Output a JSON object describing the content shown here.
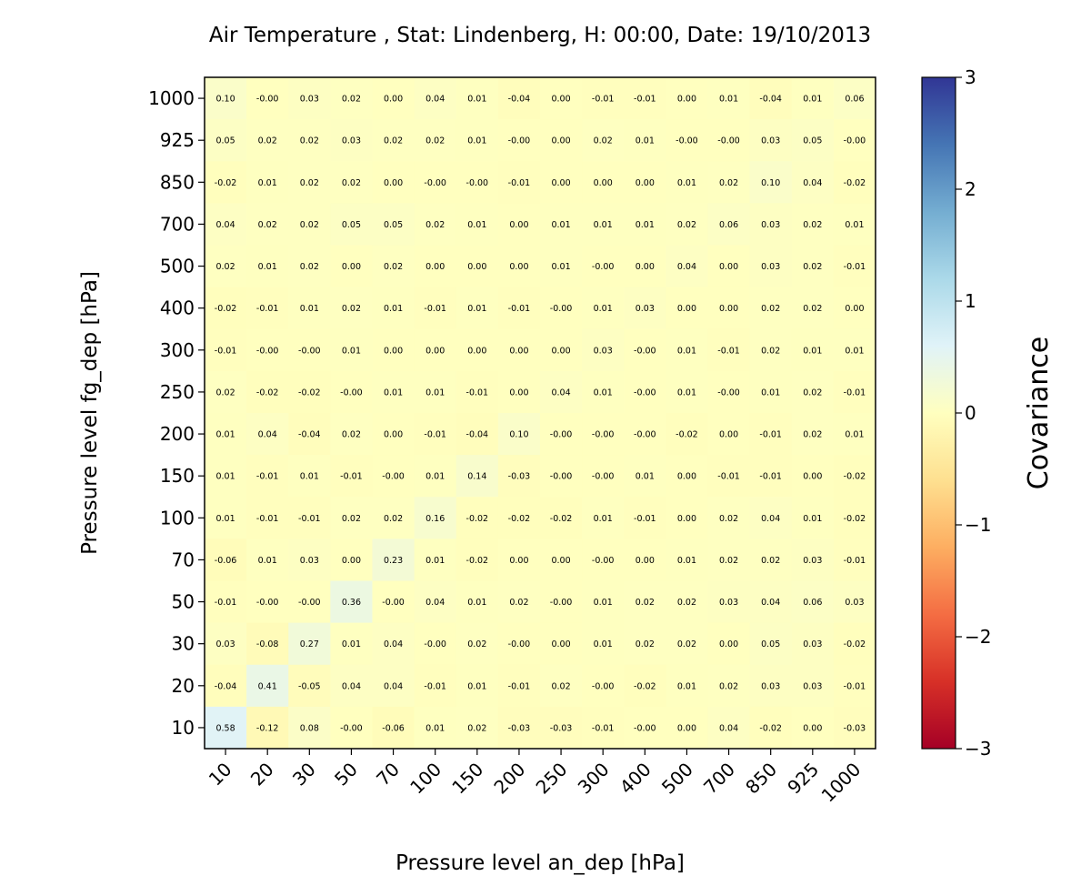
{
  "chart_data": {
    "type": "heatmap",
    "title": "Air Temperature , Stat: Lindenberg, H: 00:00, Date: 19/10/2013",
    "xlabel": "Pressure level an_dep [hPa]",
    "ylabel": "Pressure level fg_dep [hPa]",
    "x_categories": [
      "10",
      "20",
      "30",
      "50",
      "70",
      "100",
      "150",
      "200",
      "250",
      "300",
      "400",
      "500",
      "700",
      "850",
      "925",
      "1000"
    ],
    "y_categories": [
      "1000",
      "925",
      "850",
      "700",
      "500",
      "400",
      "300",
      "250",
      "200",
      "150",
      "100",
      "70",
      "50",
      "30",
      "20",
      "10"
    ],
    "values": [
      [
        "0.10",
        "-0.00",
        "0.03",
        "0.02",
        "0.00",
        "0.04",
        "0.01",
        "-0.04",
        "0.00",
        "-0.01",
        "-0.01",
        "0.00",
        "0.01",
        "-0.04",
        "0.01",
        "0.06"
      ],
      [
        "0.05",
        "0.02",
        "0.02",
        "0.03",
        "0.02",
        "0.02",
        "0.01",
        "-0.00",
        "0.00",
        "0.02",
        "0.01",
        "-0.00",
        "-0.00",
        "0.03",
        "0.05",
        "-0.00"
      ],
      [
        "-0.02",
        "0.01",
        "0.02",
        "0.02",
        "0.00",
        "-0.00",
        "-0.00",
        "-0.01",
        "0.00",
        "0.00",
        "0.00",
        "0.01",
        "0.02",
        "0.10",
        "0.04",
        "-0.02"
      ],
      [
        "0.04",
        "0.02",
        "0.02",
        "0.05",
        "0.05",
        "0.02",
        "0.01",
        "0.00",
        "0.01",
        "0.01",
        "0.01",
        "0.02",
        "0.06",
        "0.03",
        "0.02",
        "0.01"
      ],
      [
        "0.02",
        "0.01",
        "0.02",
        "0.00",
        "0.02",
        "0.00",
        "0.00",
        "0.00",
        "0.01",
        "-0.00",
        "0.00",
        "0.04",
        "0.00",
        "0.03",
        "0.02",
        "-0.01"
      ],
      [
        "-0.02",
        "-0.01",
        "0.01",
        "0.02",
        "0.01",
        "-0.01",
        "0.01",
        "-0.01",
        "-0.00",
        "0.01",
        "0.03",
        "0.00",
        "0.00",
        "0.02",
        "0.02",
        "0.00"
      ],
      [
        "-0.01",
        "-0.00",
        "-0.00",
        "0.01",
        "0.00",
        "0.00",
        "0.00",
        "0.00",
        "0.00",
        "0.03",
        "-0.00",
        "0.01",
        "-0.01",
        "0.02",
        "0.01",
        "0.01"
      ],
      [
        "0.02",
        "-0.02",
        "-0.02",
        "-0.00",
        "0.01",
        "0.01",
        "-0.01",
        "0.00",
        "0.04",
        "0.01",
        "-0.00",
        "0.01",
        "-0.00",
        "0.01",
        "0.02",
        "-0.01"
      ],
      [
        "0.01",
        "0.04",
        "-0.04",
        "0.02",
        "0.00",
        "-0.01",
        "-0.04",
        "0.10",
        "-0.00",
        "-0.00",
        "-0.00",
        "-0.02",
        "0.00",
        "-0.01",
        "0.02",
        "0.01"
      ],
      [
        "0.01",
        "-0.01",
        "0.01",
        "-0.01",
        "-0.00",
        "0.01",
        "0.14",
        "-0.03",
        "-0.00",
        "-0.00",
        "0.01",
        "0.00",
        "-0.01",
        "-0.01",
        "0.00",
        "-0.02"
      ],
      [
        "0.01",
        "-0.01",
        "-0.01",
        "0.02",
        "0.02",
        "0.16",
        "-0.02",
        "-0.02",
        "-0.02",
        "0.01",
        "-0.01",
        "0.00",
        "0.02",
        "0.04",
        "0.01",
        "-0.02"
      ],
      [
        "-0.06",
        "0.01",
        "0.03",
        "0.00",
        "0.23",
        "0.01",
        "-0.02",
        "0.00",
        "0.00",
        "-0.00",
        "0.00",
        "0.01",
        "0.02",
        "0.02",
        "0.03",
        "-0.01"
      ],
      [
        "-0.01",
        "-0.00",
        "-0.00",
        "0.36",
        "-0.00",
        "0.04",
        "0.01",
        "0.02",
        "-0.00",
        "0.01",
        "0.02",
        "0.02",
        "0.03",
        "0.04",
        "0.06",
        "0.03"
      ],
      [
        "0.03",
        "-0.08",
        "0.27",
        "0.01",
        "0.04",
        "-0.00",
        "0.02",
        "-0.00",
        "0.00",
        "0.01",
        "0.02",
        "0.02",
        "0.00",
        "0.05",
        "0.03",
        "-0.02"
      ],
      [
        "-0.04",
        "0.41",
        "-0.05",
        "0.04",
        "0.04",
        "-0.01",
        "0.01",
        "-0.01",
        "0.02",
        "-0.00",
        "-0.02",
        "0.01",
        "0.02",
        "0.03",
        "0.03",
        "-0.01"
      ],
      [
        "0.58",
        "-0.12",
        "0.08",
        "-0.00",
        "-0.06",
        "0.01",
        "0.02",
        "-0.03",
        "-0.03",
        "-0.01",
        "-0.00",
        "0.00",
        "0.04",
        "-0.02",
        "0.00",
        "-0.03"
      ]
    ],
    "colorbar": {
      "label": "Covariance",
      "range": [
        -3,
        3
      ],
      "ticks": [
        "3",
        "2",
        "1",
        "0",
        "−1",
        "−2",
        "−3"
      ],
      "tick_values": [
        3,
        2,
        1,
        0,
        -1,
        -2,
        -3
      ],
      "colormap": "RdYlBu"
    },
    "grid": false
  }
}
